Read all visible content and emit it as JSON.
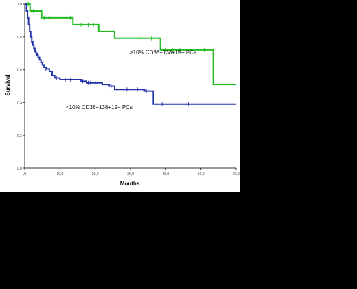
{
  "chart_data": {
    "type": "line",
    "subtype": "kaplan-meier",
    "title": "",
    "xlabel": "Months",
    "ylabel": "Survival",
    "xlim": [
      0,
      60
    ],
    "ylim": [
      0.0,
      1.0
    ],
    "xticks": [
      0,
      10,
      20,
      30,
      40,
      50,
      60
    ],
    "xtick_labels": [
      ",0",
      "10,0",
      "20,0",
      "30,0",
      "40,0",
      "50,0",
      "60,0"
    ],
    "yticks": [
      0.0,
      0.2,
      0.4,
      0.6,
      0.8,
      1.0
    ],
    "ytick_labels": [
      "0,0",
      "0,2",
      "0,4",
      "0,6",
      "0,8",
      "1,0"
    ],
    "grid": false,
    "legend": "none (series labelled on the plot)",
    "plot_background": "#ffffff",
    "page_background": "#000000",
    "series": [
      {
        "name": ">10% CD38+138+19+ PCs",
        "color": "#22bb22",
        "x": [
          0,
          1.5,
          4.8,
          13.7,
          21.0,
          25.5,
          38.5,
          53.5,
          60
        ],
        "y": [
          1.0,
          0.958,
          0.917,
          0.875,
          0.833,
          0.792,
          0.72,
          0.51,
          0.51
        ],
        "censored": [
          [
            1.0,
            1.0
          ],
          [
            2.0,
            0.958
          ],
          [
            2.5,
            0.958
          ],
          [
            5.5,
            0.917
          ],
          [
            7.0,
            0.917
          ],
          [
            13.0,
            0.917
          ],
          [
            14.5,
            0.875
          ],
          [
            16.0,
            0.875
          ],
          [
            18.0,
            0.875
          ],
          [
            19.5,
            0.875
          ],
          [
            33.0,
            0.792
          ],
          [
            36.0,
            0.792
          ],
          [
            40.0,
            0.72
          ],
          [
            42.0,
            0.72
          ],
          [
            44.0,
            0.72
          ],
          [
            48.0,
            0.72
          ],
          [
            51.0,
            0.72
          ]
        ]
      },
      {
        "name": "<10% CD38+138+19+ PCs",
        "color": "#2233aa",
        "x": [
          0,
          0.5,
          0.8,
          1.1,
          1.4,
          1.7,
          2.0,
          2.3,
          2.6,
          2.9,
          3.2,
          3.5,
          3.8,
          4.2,
          4.6,
          5.0,
          5.5,
          6.2,
          7.0,
          7.8,
          8.5,
          10.0,
          16.0,
          17.5,
          22.0,
          24.0,
          25.5,
          34.0,
          36.5,
          60
        ],
        "y": [
          1.0,
          0.958,
          0.917,
          0.875,
          0.833,
          0.8,
          0.77,
          0.75,
          0.73,
          0.71,
          0.7,
          0.69,
          0.675,
          0.66,
          0.645,
          0.63,
          0.615,
          0.605,
          0.59,
          0.565,
          0.55,
          0.54,
          0.53,
          0.52,
          0.51,
          0.5,
          0.48,
          0.47,
          0.39,
          0.39
        ],
        "censored": [
          [
            6.0,
            0.605
          ],
          [
            7.5,
            0.59
          ],
          [
            9.0,
            0.55
          ],
          [
            11.5,
            0.54
          ],
          [
            13.0,
            0.54
          ],
          [
            16.5,
            0.53
          ],
          [
            18.0,
            0.52
          ],
          [
            18.7,
            0.52
          ],
          [
            20.0,
            0.52
          ],
          [
            22.5,
            0.51
          ],
          [
            24.5,
            0.5
          ],
          [
            29.0,
            0.48
          ],
          [
            32.0,
            0.48
          ],
          [
            34.5,
            0.47
          ],
          [
            37.5,
            0.39
          ],
          [
            39.0,
            0.39
          ],
          [
            45.5,
            0.39
          ],
          [
            46.5,
            0.39
          ],
          [
            56.0,
            0.39
          ]
        ]
      }
    ]
  }
}
